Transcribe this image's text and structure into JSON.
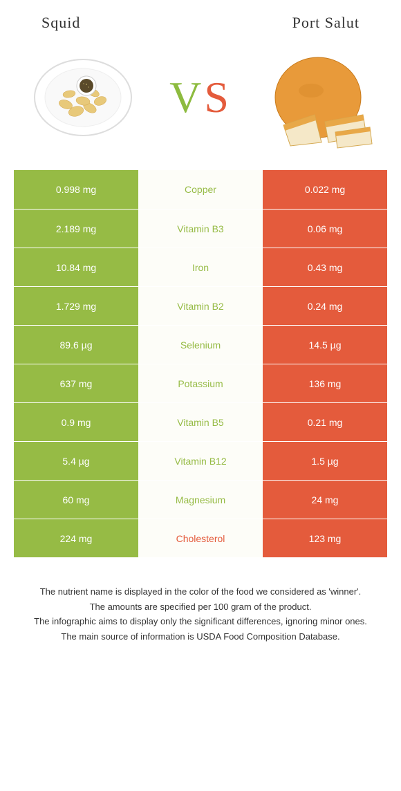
{
  "header": {
    "left_title": "Squid",
    "right_title": "Port Salut"
  },
  "vs": {
    "letter_v": "V",
    "letter_s": "S"
  },
  "colors": {
    "left": "#96bb45",
    "right": "#e45b3c",
    "center_bg": "#fdfdf8",
    "nutrient_left_winner": "#96bb45",
    "nutrient_right_winner": "#e45b3c"
  },
  "rows": [
    {
      "left": "0.998 mg",
      "nutrient": "Copper",
      "right": "0.022 mg",
      "winner": "left"
    },
    {
      "left": "2.189 mg",
      "nutrient": "Vitamin B3",
      "right": "0.06 mg",
      "winner": "left"
    },
    {
      "left": "10.84 mg",
      "nutrient": "Iron",
      "right": "0.43 mg",
      "winner": "left"
    },
    {
      "left": "1.729 mg",
      "nutrient": "Vitamin B2",
      "right": "0.24 mg",
      "winner": "left"
    },
    {
      "left": "89.6 µg",
      "nutrient": "Selenium",
      "right": "14.5 µg",
      "winner": "left"
    },
    {
      "left": "637 mg",
      "nutrient": "Potassium",
      "right": "136 mg",
      "winner": "left"
    },
    {
      "left": "0.9 mg",
      "nutrient": "Vitamin B5",
      "right": "0.21 mg",
      "winner": "left"
    },
    {
      "left": "5.4 µg",
      "nutrient": "Vitamin B12",
      "right": "1.5 µg",
      "winner": "left"
    },
    {
      "left": "60 mg",
      "nutrient": "Magnesium",
      "right": "24 mg",
      "winner": "left"
    },
    {
      "left": "224 mg",
      "nutrient": "Cholesterol",
      "right": "123 mg",
      "winner": "right"
    }
  ],
  "footnotes": [
    "The nutrient name is displayed in the color of the food we considered as 'winner'.",
    "The amounts are specified per 100 gram of the product.",
    "The infographic aims to display only the significant differences, ignoring minor ones.",
    "The main source of information is USDA Food Composition Database."
  ]
}
